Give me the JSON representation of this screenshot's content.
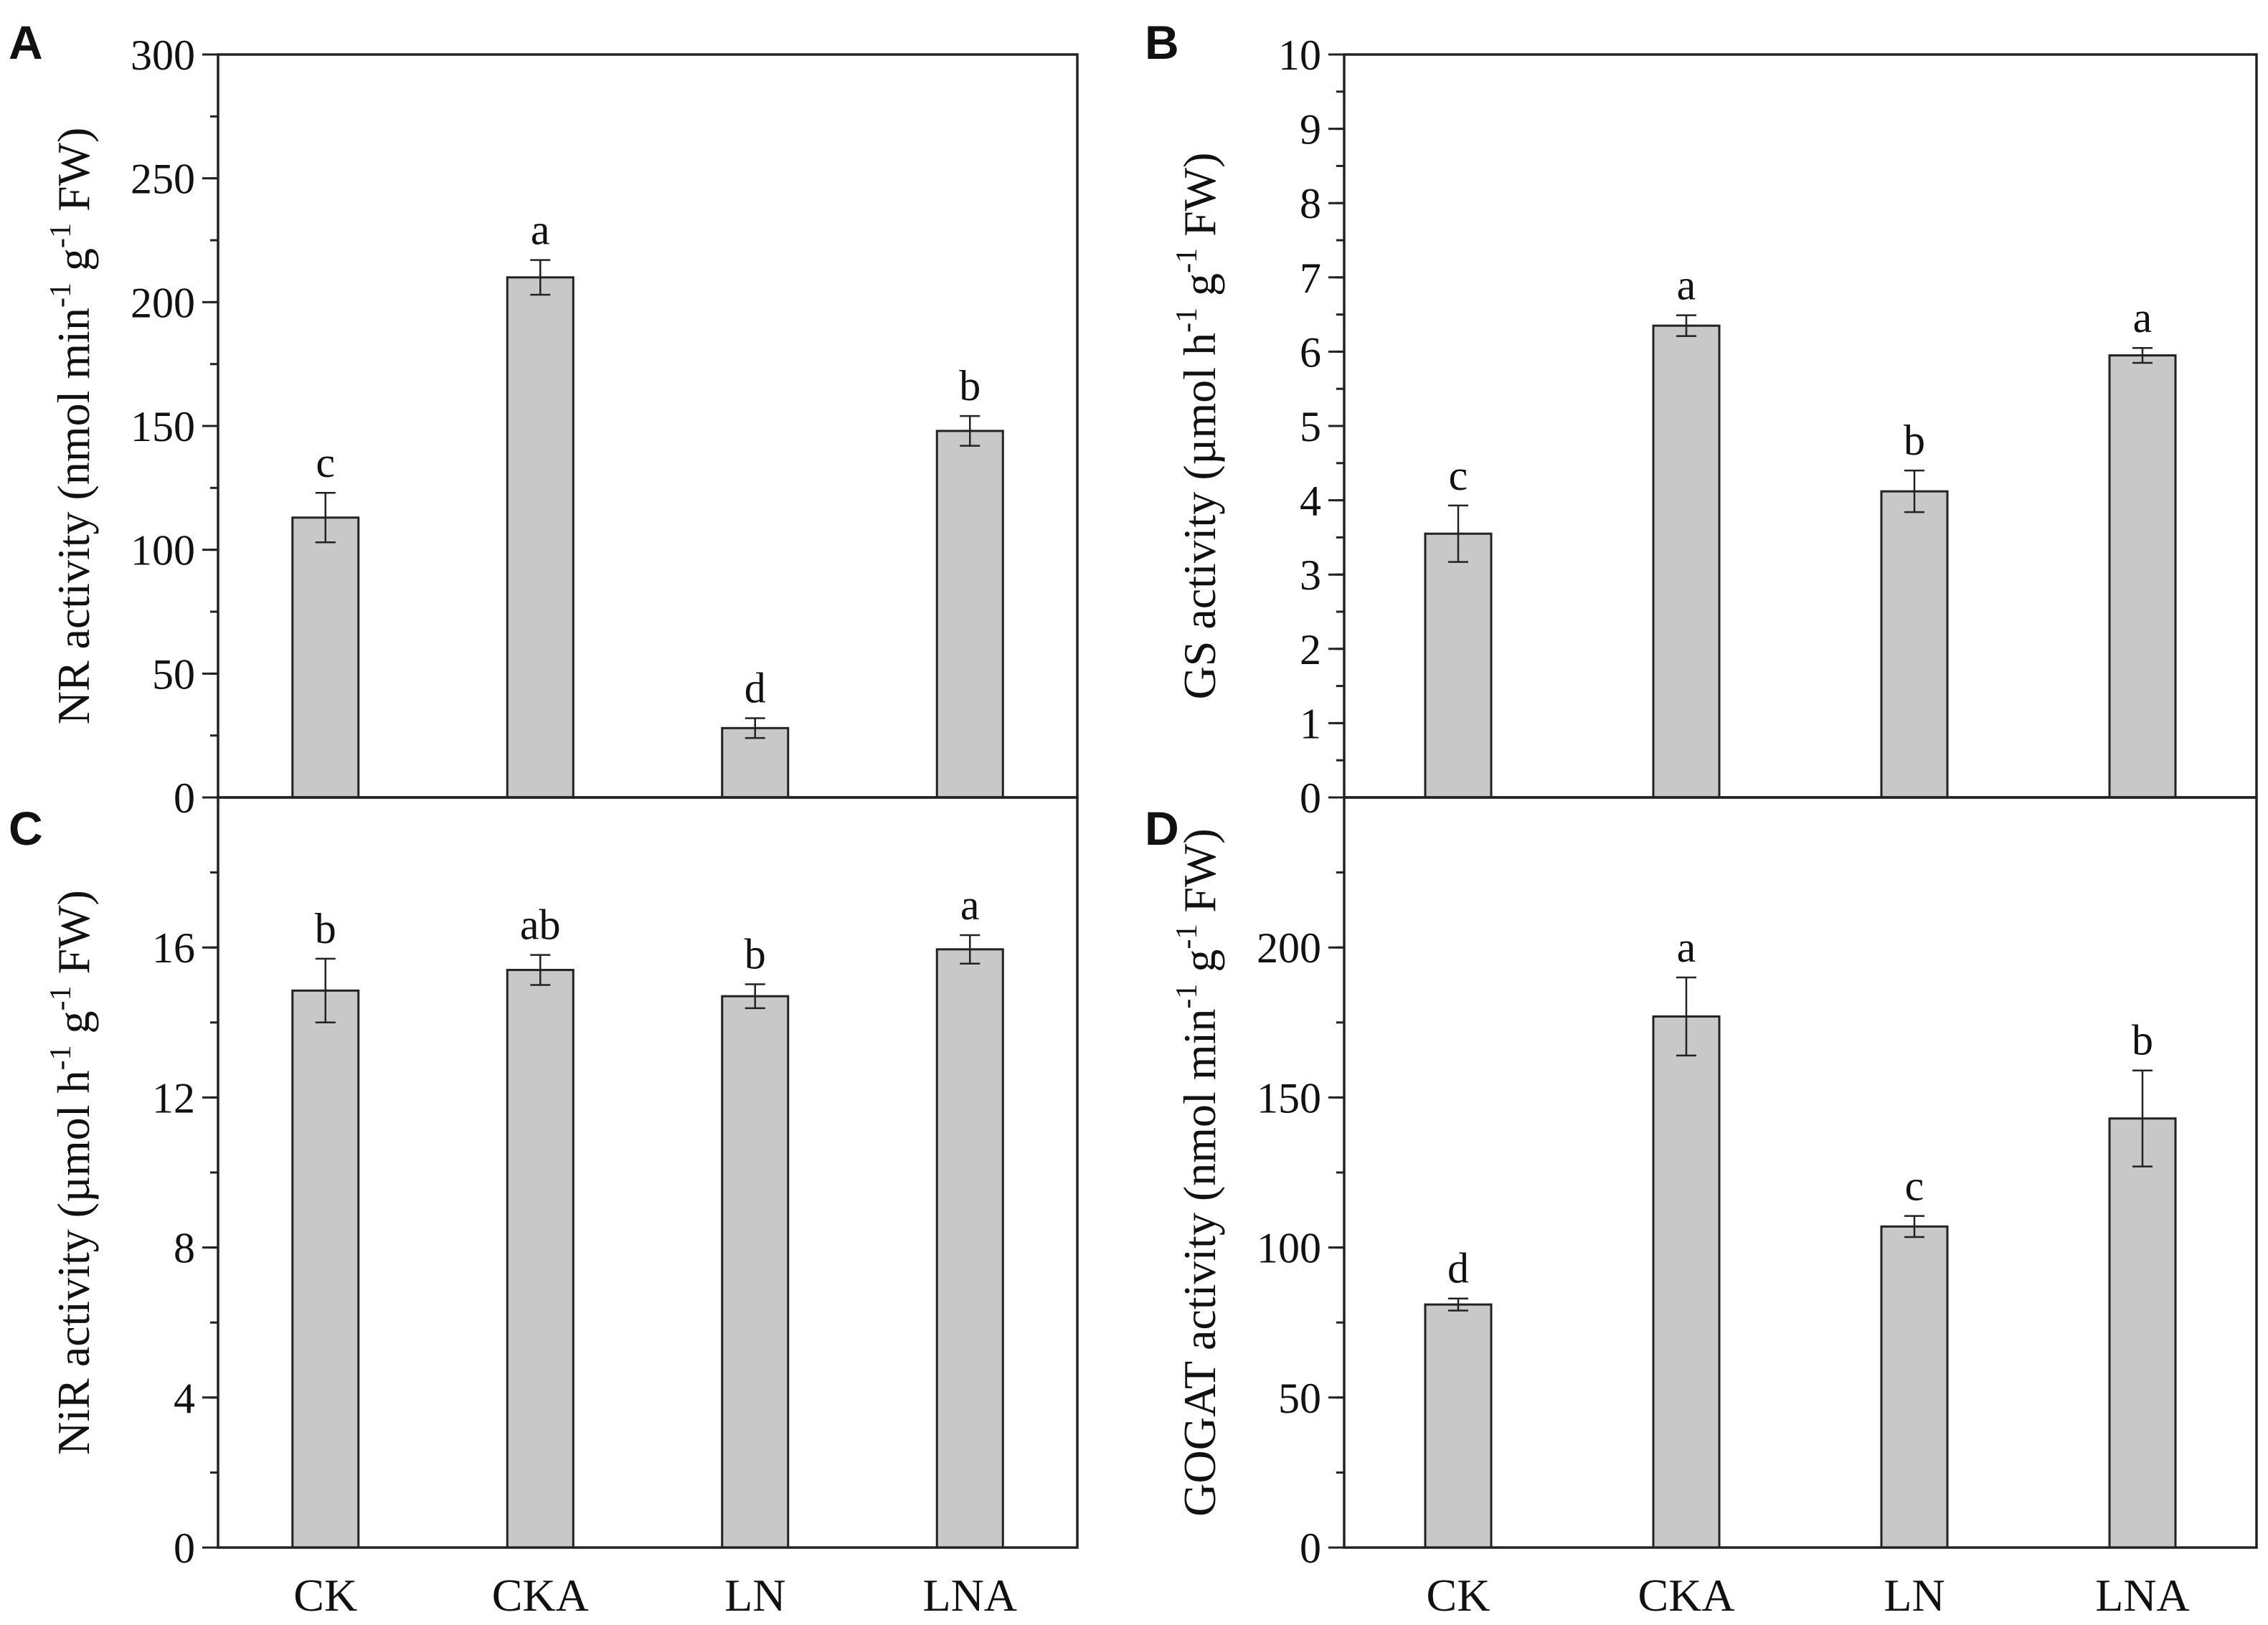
{
  "chart_data": [
    {
      "panel": "A",
      "type": "bar",
      "categories": [
        "CK",
        "CKA",
        "LN",
        "LNA"
      ],
      "values": [
        113,
        210,
        28,
        148
      ],
      "errors": [
        10,
        7,
        4,
        6
      ],
      "letters": [
        "c",
        "a",
        "d",
        "b"
      ],
      "ylabel": "NR activity (nmol min-1 g-1 FW)",
      "ylabel_parts": [
        "NR activity (nmol min",
        "-1",
        " g",
        "-1",
        " FW)"
      ],
      "ylim": [
        0,
        300
      ],
      "yticks": [
        0,
        50,
        100,
        150,
        200,
        250,
        300
      ],
      "ytick_labels": [
        "0",
        "50",
        "100",
        "150",
        "200",
        "250",
        "300"
      ],
      "minor_step": 25,
      "xlabel": "",
      "show_x_labels": false
    },
    {
      "panel": "B",
      "type": "bar",
      "categories": [
        "CK",
        "CKA",
        "LN",
        "LNA"
      ],
      "values": [
        3.55,
        6.35,
        4.12,
        5.95
      ],
      "errors": [
        0.38,
        0.14,
        0.28,
        0.1
      ],
      "letters": [
        "c",
        "a",
        "b",
        "a"
      ],
      "ylabel": "GS activity (µmol h-1 g-1 FW)",
      "ylabel_parts": [
        "GS activity (µmol h",
        "-1",
        " g",
        "-1",
        " FW)"
      ],
      "ylim": [
        0,
        10
      ],
      "yticks": [
        0,
        1,
        2,
        3,
        4,
        5,
        6,
        7,
        8,
        9,
        10
      ],
      "ytick_labels": [
        "0",
        "1",
        "2",
        "3",
        "4",
        "5",
        "6",
        "7",
        "8",
        "9",
        "10"
      ],
      "minor_step": 0.5,
      "xlabel": "",
      "show_x_labels": false
    },
    {
      "panel": "C",
      "type": "bar",
      "categories": [
        "CK",
        "CKA",
        "LN",
        "LNA"
      ],
      "values": [
        14.85,
        15.4,
        14.7,
        15.95
      ],
      "errors": [
        0.85,
        0.4,
        0.32,
        0.38
      ],
      "letters": [
        "b",
        "ab",
        "b",
        "a"
      ],
      "ylabel": "NiR activity (µmol h-1 g-1 FW)",
      "ylabel_parts": [
        "NiR activity (µmol h",
        "-1",
        " g",
        "-1",
        " FW)"
      ],
      "ylim": [
        0,
        20
      ],
      "yticks": [
        0,
        4,
        8,
        12,
        16
      ],
      "ytick_labels": [
        "0",
        "4",
        "8",
        "12",
        "16"
      ],
      "minor_step": 2,
      "xlabel": "",
      "show_x_labels": true
    },
    {
      "panel": "D",
      "type": "bar",
      "categories": [
        "CK",
        "CKA",
        "LN",
        "LNA"
      ],
      "values": [
        81,
        177,
        107,
        143
      ],
      "errors": [
        2,
        13,
        3.5,
        16
      ],
      "letters": [
        "d",
        "a",
        "c",
        "b"
      ],
      "ylabel": "GOGAT activity (nmol min-1 g-1 FW)",
      "ylabel_parts": [
        "GOGAT activity (nmol min",
        "-1",
        " g",
        "-1",
        " FW)"
      ],
      "ylim": [
        0,
        250
      ],
      "yticks": [
        0,
        50,
        100,
        150,
        200
      ],
      "ytick_labels": [
        "0",
        "50",
        "100",
        "150",
        "200"
      ],
      "minor_step": 25,
      "xlabel": "",
      "show_x_labels": true
    }
  ],
  "colors": {
    "bar_fill": "#c8c8c8",
    "stroke": "#222222",
    "text": "#111111"
  }
}
